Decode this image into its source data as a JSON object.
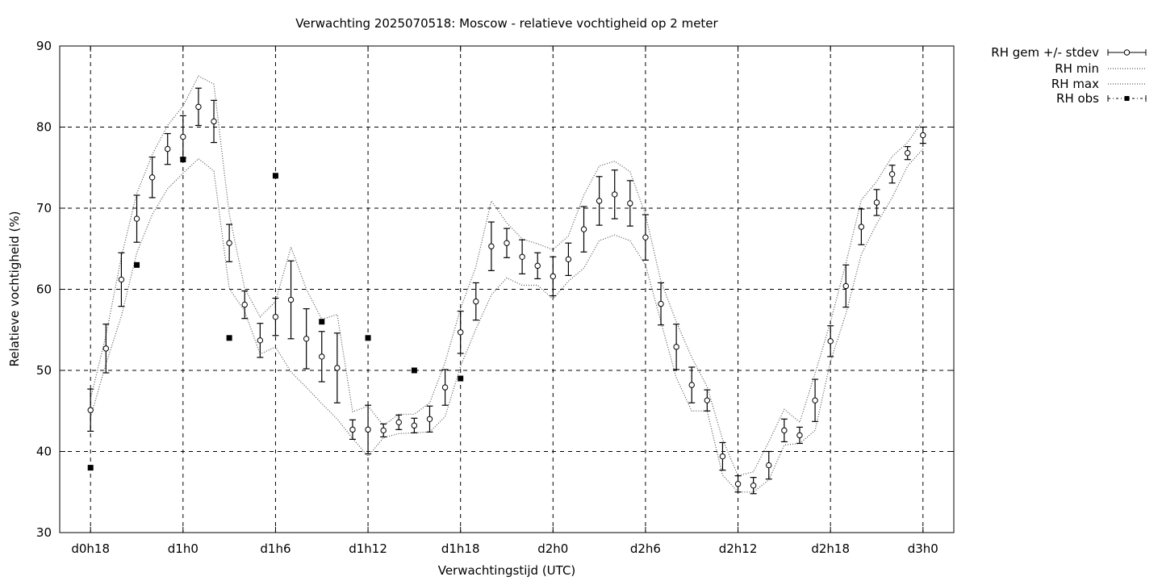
{
  "chart_data": {
    "type": "line",
    "title": "Verwachting 2025070518: Moscow - relatieve vochtigheid op 2 meter",
    "xlabel": "Verwachtingstijd (UTC)",
    "ylabel": "Relatieve vochtigheid (%)",
    "x_unit": "forecast hour",
    "xlim": [
      -2,
      56
    ],
    "ylim": [
      30,
      90
    ],
    "grid": true,
    "legend_position": "outside-right-top",
    "x_ticks": [
      {
        "x": 0,
        "label": "d0h18"
      },
      {
        "x": 6,
        "label": "d1h0"
      },
      {
        "x": 12,
        "label": "d1h6"
      },
      {
        "x": 18,
        "label": "d1h12"
      },
      {
        "x": 24,
        "label": "d1h18"
      },
      {
        "x": 30,
        "label": "d2h0"
      },
      {
        "x": 36,
        "label": "d2h6"
      },
      {
        "x": 42,
        "label": "d2h12"
      },
      {
        "x": 48,
        "label": "d2h18"
      },
      {
        "x": 54,
        "label": "d3h0"
      }
    ],
    "y_ticks": [
      {
        "y": 30,
        "label": "30"
      },
      {
        "y": 40,
        "label": "40"
      },
      {
        "y": 50,
        "label": "50"
      },
      {
        "y": 60,
        "label": "60"
      },
      {
        "y": 70,
        "label": "70"
      },
      {
        "y": 80,
        "label": "80"
      },
      {
        "y": 90,
        "label": "90"
      }
    ],
    "x": [
      0,
      1,
      2,
      3,
      4,
      5,
      6,
      7,
      8,
      9,
      10,
      11,
      12,
      13,
      14,
      15,
      16,
      17,
      18,
      19,
      20,
      21,
      22,
      23,
      24,
      25,
      26,
      27,
      28,
      29,
      30,
      31,
      32,
      33,
      34,
      35,
      36,
      37,
      38,
      39,
      40,
      41,
      42,
      43,
      44,
      45,
      46,
      47,
      48,
      49,
      50,
      51,
      52,
      53,
      54
    ],
    "series": [
      {
        "name": "RH gem +/- stdev",
        "style": "points-errorbars",
        "mean": [
          45.1,
          52.7,
          61.2,
          68.7,
          73.8,
          77.3,
          78.8,
          82.5,
          80.7,
          65.7,
          58.1,
          53.7,
          56.6,
          58.7,
          53.9,
          51.7,
          50.3,
          42.7,
          42.7,
          42.6,
          43.6,
          43.2,
          44.0,
          47.9,
          54.7,
          58.5,
          65.3,
          65.7,
          64.0,
          62.9,
          61.6,
          63.7,
          67.4,
          70.9,
          71.7,
          70.6,
          66.4,
          58.2,
          52.9,
          48.2,
          46.3,
          39.4,
          36.0,
          35.8,
          38.3,
          42.6,
          42.0,
          46.3,
          53.6,
          60.4,
          67.7,
          70.7,
          74.2,
          76.8,
          79.0
        ],
        "stdev": [
          2.6,
          3.0,
          3.3,
          2.9,
          2.5,
          1.9,
          2.6,
          2.3,
          2.6,
          2.3,
          1.7,
          2.1,
          2.3,
          4.8,
          3.7,
          3.1,
          4.3,
          1.2,
          3.0,
          0.8,
          0.9,
          0.9,
          1.6,
          2.2,
          2.6,
          2.3,
          3.0,
          1.8,
          2.1,
          1.6,
          2.4,
          2.0,
          2.8,
          3.0,
          3.0,
          2.8,
          2.8,
          2.6,
          2.8,
          2.2,
          1.3,
          1.7,
          1.0,
          1.0,
          1.7,
          1.4,
          1.0,
          2.6,
          1.9,
          2.6,
          2.2,
          1.6,
          1.1,
          0.8,
          1.0
        ],
        "color": "#000000"
      },
      {
        "name": "RH min",
        "style": "dotted",
        "values": [
          44.2,
          50.8,
          56.7,
          64.5,
          69.2,
          72.4,
          74.3,
          76.1,
          74.6,
          60.1,
          57.3,
          52.0,
          52.9,
          49.8,
          47.9,
          45.9,
          44.0,
          41.6,
          39.4,
          41.7,
          42.2,
          42.3,
          42.4,
          44.3,
          50.5,
          55.1,
          59.3,
          61.4,
          60.5,
          60.5,
          58.8,
          61.0,
          62.6,
          66.0,
          66.7,
          66.0,
          63.0,
          56.0,
          49.1,
          45.0,
          45.0,
          37.1,
          35.0,
          35.0,
          36.5,
          40.8,
          41.0,
          42.6,
          51.1,
          57.0,
          64.3,
          68.1,
          71.3,
          75.2,
          77.3
        ],
        "color": "#000000"
      },
      {
        "name": "RH max",
        "style": "dotted",
        "values": [
          46.5,
          54.3,
          64.0,
          71.8,
          76.6,
          80.2,
          82.6,
          86.3,
          85.3,
          69.3,
          60.1,
          56.6,
          58.5,
          65.2,
          60.0,
          56.3,
          56.9,
          44.9,
          45.6,
          43.2,
          44.6,
          44.6,
          46.0,
          51.0,
          57.6,
          62.8,
          70.9,
          68.2,
          66.2,
          65.6,
          64.9,
          66.6,
          71.6,
          75.2,
          75.8,
          74.5,
          69.2,
          61.0,
          56.0,
          51.6,
          48.0,
          41.5,
          37.0,
          37.5,
          41.2,
          45.2,
          43.6,
          49.6,
          56.0,
          63.2,
          71.0,
          73.3,
          76.4,
          78.1,
          80.8
        ],
        "color": "#000000"
      },
      {
        "name": "RH obs",
        "style": "filled-square-markers",
        "points": [
          {
            "x": 0,
            "y": 38
          },
          {
            "x": 3,
            "y": 63
          },
          {
            "x": 6,
            "y": 76
          },
          {
            "x": 9,
            "y": 54
          },
          {
            "x": 12,
            "y": 74
          },
          {
            "x": 15,
            "y": 56
          },
          {
            "x": 18,
            "y": 54
          },
          {
            "x": 21,
            "y": 50
          },
          {
            "x": 24,
            "y": 49
          }
        ],
        "color": "#000000"
      }
    ]
  }
}
